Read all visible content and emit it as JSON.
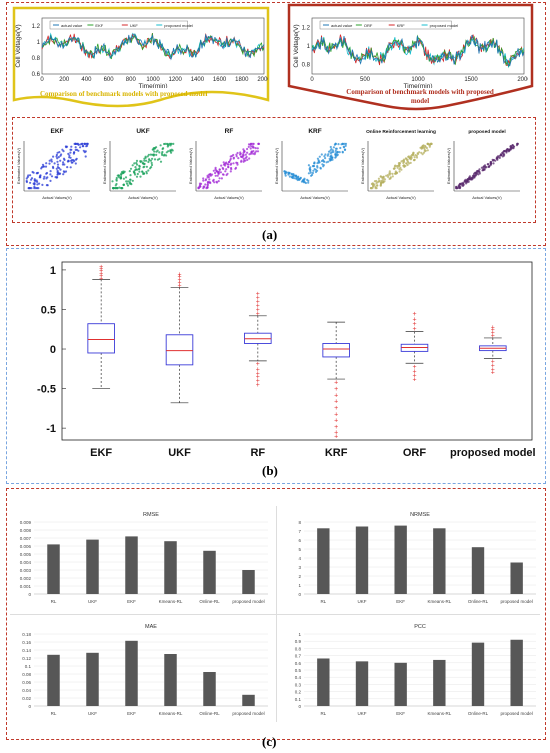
{
  "panel_labels": {
    "a": "(a)",
    "b": "(b)",
    "c": "(c)"
  },
  "callouts": {
    "left": "Comparison of benchmark models with proposed model",
    "right": "Comparison of benchmark models with proposed model"
  },
  "colors": {
    "box_blue": "#3a3ad8",
    "median_red": "#e03030",
    "outlier_red": "#e03030",
    "bar_gray": "#575757",
    "frame_red": "#c0392b",
    "frame_yellow": "#e0c419",
    "frame_blue": "#7aa6e0"
  },
  "chart_data": [
    {
      "id": "ts-left",
      "type": "line",
      "ylabel": "Cell Voltage(V)",
      "xlabel": "Time(min)",
      "xticks": [
        "0",
        "200",
        "400",
        "600",
        "800",
        "1000",
        "1200",
        "1400",
        "1600",
        "1800",
        "2000"
      ],
      "yticks": [
        "0.6",
        "0.8",
        "1",
        "1.2"
      ],
      "xlim": [
        0,
        2000
      ],
      "ylim": [
        0.6,
        1.3
      ],
      "legend": [
        "actual value",
        "EKF",
        "UKF",
        "proposed model"
      ],
      "series_colors": [
        "#1f77b4",
        "#2ca02c",
        "#d62728",
        "#17becf"
      ]
    },
    {
      "id": "ts-right",
      "type": "line",
      "ylabel": "Cell Voltage(V)",
      "xlabel": "Time(min)",
      "xticks": [
        "0",
        "500",
        "1000",
        "1500",
        "2000"
      ],
      "yticks": [
        "0.8",
        "1",
        "1.2"
      ],
      "xlim": [
        0,
        2000
      ],
      "ylim": [
        0.7,
        1.3
      ],
      "legend": [
        "actual value",
        "ORF",
        "KRF",
        "proposed model"
      ],
      "series_colors": [
        "#1f77b4",
        "#2ca02c",
        "#d62728",
        "#17becf"
      ]
    },
    {
      "id": "scatter-panels",
      "type": "scatter",
      "panels": [
        {
          "title": "EKF",
          "xlabel": "Actual Values(V)",
          "ylabel": "Estimated Values(V)",
          "color": "#2a3bd6"
        },
        {
          "title": "UKF",
          "xlabel": "Actual Values(V)",
          "ylabel": "Estimated Values(V)",
          "color": "#17a05a"
        },
        {
          "title": "RF",
          "xlabel": "Actual Values(V)",
          "ylabel": "Estimated Values(V)",
          "color": "#a22ad6"
        },
        {
          "title": "KRF",
          "xlabel": "Actual Values(V)",
          "ylabel": "Estimated Values(V)",
          "color": "#2a8fd6"
        },
        {
          "title": "Online Reinforcement learning",
          "xlabel": "Actual Values(V)",
          "ylabel": "Estimated Values(V)",
          "color": "#b5b060"
        },
        {
          "title": "proposed model",
          "xlabel": "Actual Values(V)",
          "ylabel": "Estimated Values(V)",
          "color": "#5a2a6e"
        }
      ]
    },
    {
      "id": "boxplot",
      "type": "box",
      "categories": [
        "EKF",
        "UKF",
        "RF",
        "KRF",
        "ORF",
        "proposed model"
      ],
      "yticks": [
        "-1",
        "-0.5",
        "0",
        "0.5",
        "1"
      ],
      "ylim": [
        -1.15,
        1.1
      ],
      "boxes": [
        {
          "q1": -0.05,
          "median": 0.12,
          "q3": 0.32,
          "wlo": -0.5,
          "whi": 0.88,
          "outliers": [
            0.9,
            0.93,
            0.96,
            0.99,
            1.02,
            1.04
          ]
        },
        {
          "q1": -0.2,
          "median": -0.02,
          "q3": 0.18,
          "wlo": -0.68,
          "whi": 0.78,
          "outliers": [
            0.8,
            0.84,
            0.88,
            0.92,
            0.95
          ]
        },
        {
          "q1": 0.07,
          "median": 0.13,
          "q3": 0.2,
          "wlo": -0.15,
          "whi": 0.42,
          "outliers": [
            0.45,
            0.5,
            0.55,
            0.6,
            0.65,
            0.7,
            -0.18,
            -0.25,
            -0.3,
            -0.35,
            -0.4,
            -0.45
          ]
        },
        {
          "q1": -0.1,
          "median": 0.0,
          "q3": 0.07,
          "wlo": -0.38,
          "whi": 0.34,
          "outliers": [
            -0.42,
            -0.5,
            -0.58,
            -0.66,
            -0.74,
            -0.82,
            -0.9,
            -0.98,
            -1.05,
            -1.1
          ]
        },
        {
          "q1": -0.03,
          "median": 0.02,
          "q3": 0.06,
          "wlo": -0.18,
          "whi": 0.22,
          "outliers": [
            0.26,
            0.32,
            0.38,
            0.45,
            -0.22,
            -0.28,
            -0.33,
            -0.38
          ]
        },
        {
          "q1": -0.02,
          "median": 0.01,
          "q3": 0.04,
          "wlo": -0.12,
          "whi": 0.14,
          "outliers": [
            0.17,
            0.21,
            0.25,
            0.28,
            -0.15,
            -0.2,
            -0.25,
            -0.29
          ]
        }
      ]
    },
    {
      "id": "bar-rmse",
      "type": "bar",
      "title": "RMSE",
      "categories": [
        "RL",
        "UKF",
        "EKF",
        "Kmeans-RL",
        "Online-RL",
        "proposed model"
      ],
      "values": [
        0.0062,
        0.0068,
        0.0072,
        0.0066,
        0.0054,
        0.003
      ],
      "ylim": [
        0,
        0.009
      ],
      "yticks": [
        "0",
        "0.001",
        "0.002",
        "0.003",
        "0.004",
        "0.005",
        "0.006",
        "0.007",
        "0.008",
        "0.009"
      ]
    },
    {
      "id": "bar-nrmse",
      "type": "bar",
      "title": "NRMSE",
      "categories": [
        "RL",
        "UKF",
        "EKF",
        "Kmeans-RL",
        "Online-RL",
        "proposed model"
      ],
      "values": [
        7.3,
        7.5,
        7.6,
        7.3,
        5.2,
        3.5
      ],
      "ylim": [
        0,
        8
      ],
      "yticks": [
        "0",
        "1",
        "2",
        "3",
        "4",
        "5",
        "6",
        "7",
        "8"
      ]
    },
    {
      "id": "bar-mae",
      "type": "bar",
      "title": "MAE",
      "categories": [
        "RL",
        "UKF",
        "EKF",
        "Kmeans-RL",
        "Online-RL",
        "proposed model"
      ],
      "values": [
        0.128,
        0.133,
        0.163,
        0.13,
        0.085,
        0.028
      ],
      "ylim": [
        0,
        0.18
      ],
      "yticks": [
        "0",
        "0.02",
        "0.04",
        "0.06",
        "0.08",
        "0.1",
        "0.12",
        "0.14",
        "0.16",
        "0.18"
      ]
    },
    {
      "id": "bar-pcc",
      "type": "bar",
      "title": "PCC",
      "categories": [
        "RL",
        "UKF",
        "EKF",
        "Kmeans-RL",
        "Online-RL",
        "proposed model"
      ],
      "values": [
        0.66,
        0.62,
        0.6,
        0.64,
        0.88,
        0.92
      ],
      "ylim": [
        0,
        1
      ],
      "yticks": [
        "0",
        "0.1",
        "0.2",
        "0.3",
        "0.4",
        "0.5",
        "0.6",
        "0.7",
        "0.8",
        "0.9",
        "1"
      ]
    }
  ]
}
